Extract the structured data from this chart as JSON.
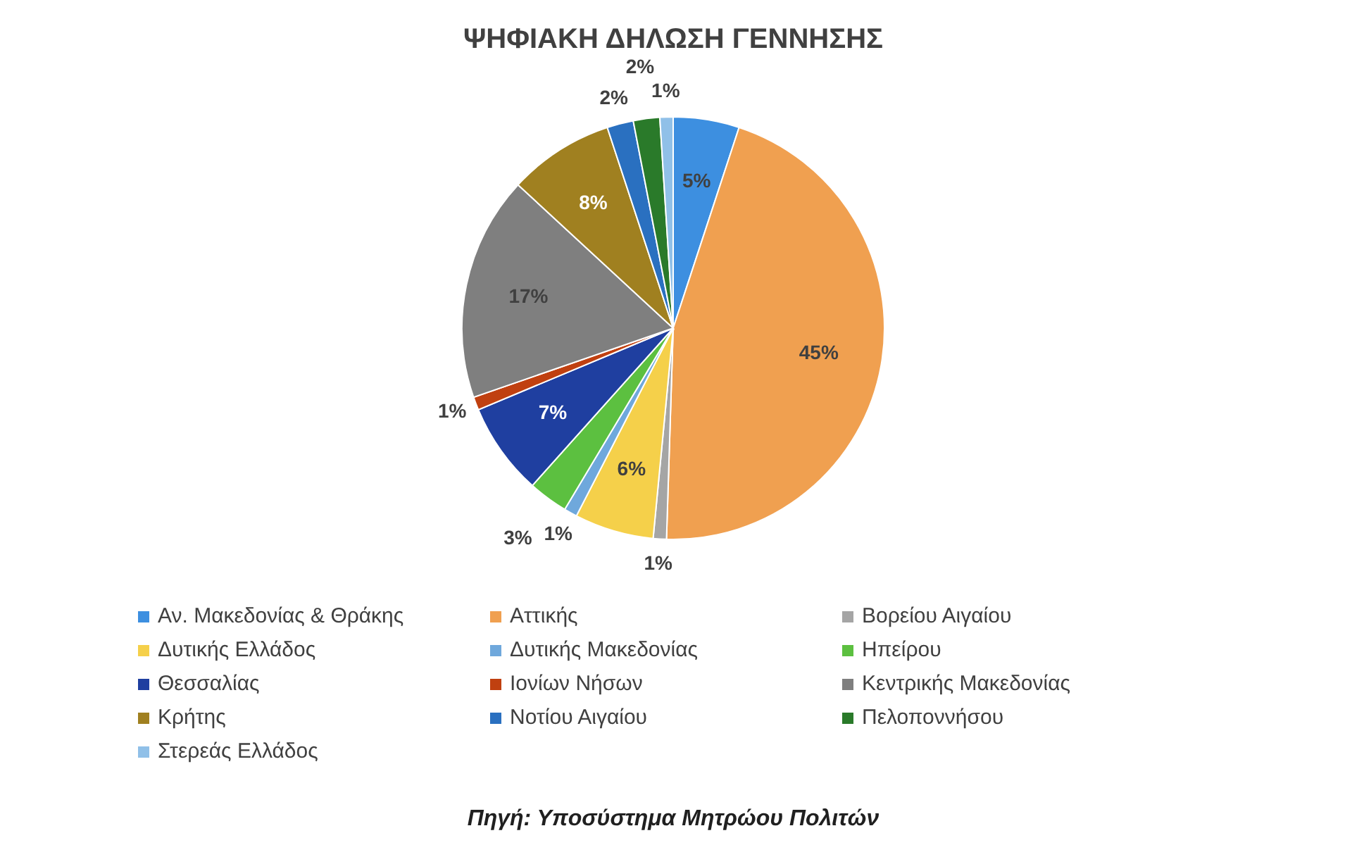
{
  "chart_data": {
    "type": "pie",
    "title": "ΨΗΦΙΑΚΗ ΔΗΛΩΣΗ ΓΕΝΝΗΣΗΣ",
    "categories": [
      "Αν. Μακεδονίας & Θράκης",
      "Αττικής",
      "Βορείου Αιγαίου",
      "Δυτικής Ελλάδος",
      "Δυτικής Μακεδονίας",
      "Ηπείρου",
      "Θεσσαλίας",
      "Ιονίων Νήσων",
      "Κεντρικής Μακεδονίας",
      "Κρήτης",
      "Νοτίου Αιγαίου",
      "Πελοποννήσου",
      "Στερεάς Ελλάδος"
    ],
    "values": [
      5,
      45,
      1,
      6,
      1,
      3,
      7,
      1,
      17,
      8,
      2,
      2,
      1
    ],
    "colors": [
      "#3d8fe0",
      "#f0a050",
      "#a5a5a5",
      "#f5d04a",
      "#6fa8dc",
      "#5cc040",
      "#1f3fa0",
      "#c04010",
      "#7f7f7f",
      "#a08020",
      "#2a70c0",
      "#2a7a2a",
      "#90c0e8"
    ],
    "value_labels": [
      "5%",
      "45%",
      "1%",
      "6%",
      "1%",
      "3%",
      "7%",
      "1%",
      "17%",
      "8%",
      "2%",
      "2%",
      "1%"
    ],
    "legend": "bottom",
    "annotations": [
      "Πηγή: Υποσύστημα Μητρώου Πολιτών"
    ]
  }
}
